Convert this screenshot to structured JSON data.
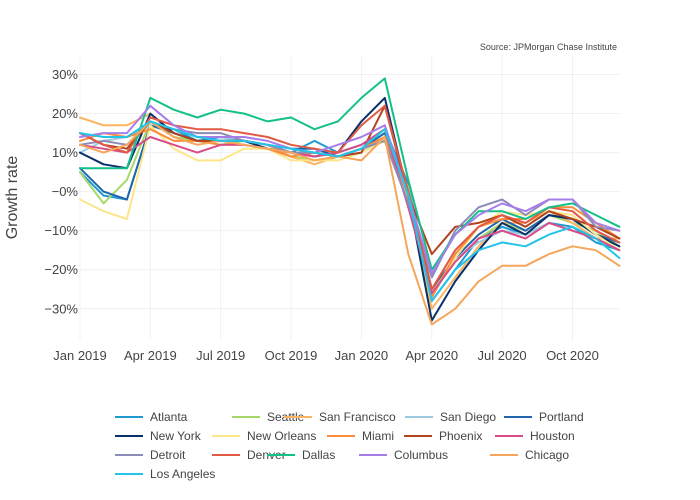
{
  "chart_data": {
    "type": "line",
    "title": "",
    "source": "Source: JPMorgan Chase Institute",
    "xlabel": "",
    "ylabel": "Growth rate",
    "x": [
      "2019-01",
      "2019-02",
      "2019-03",
      "2019-04",
      "2019-05",
      "2019-06",
      "2019-07",
      "2019-08",
      "2019-09",
      "2019-10",
      "2019-11",
      "2019-12",
      "2020-01",
      "2020-02",
      "2020-03",
      "2020-04",
      "2020-05",
      "2020-06",
      "2020-07",
      "2020-08",
      "2020-09",
      "2020-10",
      "2020-11",
      "2020-12"
    ],
    "x_ticks": [
      {
        "value": "2019-01",
        "label": "Jan 2019"
      },
      {
        "value": "2019-04",
        "label": "Apr 2019"
      },
      {
        "value": "2019-07",
        "label": "Jul 2019"
      },
      {
        "value": "2019-10",
        "label": "Oct 2019"
      },
      {
        "value": "2020-01",
        "label": "Jan 2020"
      },
      {
        "value": "2020-04",
        "label": "Apr 2020"
      },
      {
        "value": "2020-07",
        "label": "Jul 2020"
      },
      {
        "value": "2020-10",
        "label": "Oct 2020"
      }
    ],
    "y_ticks": [
      {
        "value": 30,
        "label": "30%"
      },
      {
        "value": 20,
        "label": "20%"
      },
      {
        "value": 10,
        "label": "10%"
      },
      {
        "value": 0,
        "label": "−0%"
      },
      {
        "value": -10,
        "label": "−10%"
      },
      {
        "value": -20,
        "label": "−20%"
      },
      {
        "value": -30,
        "label": "−30%"
      }
    ],
    "ylim": [
      -38,
      35
    ],
    "grid": true,
    "legend_position": "bottom",
    "series": [
      {
        "name": "Atlanta",
        "color": "#1f9bd1",
        "values": [
          5,
          -1,
          -2,
          17,
          16,
          13,
          14,
          13,
          12,
          10,
          13,
          10,
          12,
          16,
          2,
          -28,
          -20,
          -12,
          -9,
          -11,
          -8,
          -9,
          -13,
          -15
        ]
      },
      {
        "name": "Seattle",
        "color": "#a6d96a",
        "values": [
          5,
          -3,
          3,
          18,
          14,
          13,
          12,
          13,
          11,
          9,
          8,
          9,
          10,
          14,
          1,
          -26,
          -18,
          -12,
          -8,
          -10,
          -6,
          -8,
          -10,
          -14
        ]
      },
      {
        "name": "San Francisco",
        "color": "#fdb462",
        "values": [
          19,
          17,
          17,
          20,
          15,
          13,
          13,
          13,
          12,
          9,
          7,
          9,
          11,
          14,
          -2,
          -30,
          -22,
          -14,
          -8,
          -8,
          -5,
          -8,
          -12,
          -12
        ]
      },
      {
        "name": "San Diego",
        "color": "#9ecae1",
        "values": [
          10,
          13,
          14,
          17,
          16,
          14,
          14,
          13,
          12,
          10,
          10,
          9,
          10,
          14,
          0,
          -27,
          -17,
          -13,
          -10,
          -11,
          -8,
          -10,
          -12,
          -15
        ]
      },
      {
        "name": "Portland",
        "color": "#2166ac",
        "values": [
          6,
          0,
          -2,
          17,
          15,
          13,
          13,
          13,
          12,
          11,
          11,
          9,
          11,
          15,
          0,
          -25,
          -17,
          -11,
          -7,
          -10,
          -6,
          -7,
          -11,
          -13
        ]
      },
      {
        "name": "New York",
        "color": "#08306b",
        "values": [
          10,
          7,
          6,
          20,
          15,
          13,
          13,
          13,
          11,
          10,
          9,
          10,
          18,
          24,
          -1,
          -33,
          -23,
          -15,
          -8,
          -11,
          -6,
          -7,
          -11,
          -14
        ]
      },
      {
        "name": "New Orleans",
        "color": "#fde68a",
        "values": [
          -2,
          -5,
          -7,
          17,
          11,
          8,
          8,
          11,
          11,
          8,
          8,
          8,
          10,
          13,
          -3,
          -26,
          -17,
          -9,
          -5,
          -6,
          -5,
          -6,
          -11,
          -15
        ]
      },
      {
        "name": "Miami",
        "color": "#fb8c3c",
        "values": [
          13,
          15,
          14,
          16,
          13,
          13,
          12,
          12,
          11,
          9,
          10,
          9,
          11,
          14,
          -3,
          -27,
          -16,
          -9,
          -7,
          -7,
          -4,
          -4,
          -8,
          -12
        ]
      },
      {
        "name": "Phoenix",
        "color": "#b2431f",
        "values": [
          15,
          12,
          11,
          18,
          15,
          13,
          13,
          13,
          12,
          10,
          10,
          9,
          10,
          22,
          -1,
          -16,
          -9,
          -8,
          -6,
          -9,
          -5,
          -7,
          -9,
          -12
        ]
      },
      {
        "name": "Houston",
        "color": "#d94c8a",
        "values": [
          12,
          11,
          10,
          14,
          12,
          10,
          12,
          12,
          11,
          10,
          9,
          10,
          12,
          16,
          -4,
          -26,
          -18,
          -12,
          -10,
          -12,
          -8,
          -10,
          -12,
          -15
        ]
      },
      {
        "name": "Detroit",
        "color": "#8c8cb8",
        "values": [
          12,
          13,
          12,
          18,
          16,
          15,
          15,
          13,
          12,
          10,
          10,
          9,
          11,
          13,
          -3,
          -22,
          -10,
          -4,
          -2,
          -6,
          -2,
          -2,
          -9,
          -10
        ]
      },
      {
        "name": "Denver",
        "color": "#e05a44",
        "values": [
          15,
          12,
          10,
          19,
          17,
          16,
          16,
          15,
          14,
          12,
          11,
          10,
          17,
          22,
          0,
          -25,
          -15,
          -9,
          -6,
          -8,
          -4,
          -5,
          -10,
          -13
        ]
      },
      {
        "name": "Dallas",
        "color": "#14c08a",
        "values": [
          6,
          6,
          6,
          24,
          21,
          19,
          21,
          20,
          18,
          19,
          16,
          18,
          24,
          29,
          3,
          -20,
          -11,
          -5,
          -5,
          -7,
          -4,
          -3,
          -6,
          -9
        ]
      },
      {
        "name": "Columbus",
        "color": "#a77dea",
        "values": [
          14,
          15,
          15,
          22,
          17,
          14,
          14,
          14,
          13,
          11,
          10,
          12,
          14,
          17,
          -1,
          -21,
          -11,
          -6,
          -3,
          -5,
          -2,
          -2,
          -8,
          -10
        ]
      },
      {
        "name": "Chicago",
        "color": "#f6a65a",
        "values": [
          12,
          10,
          12,
          18,
          14,
          12,
          13,
          12,
          11,
          10,
          8,
          9,
          8,
          14,
          -16,
          -34,
          -30,
          -23,
          -19,
          -19,
          -16,
          -14,
          -15,
          -19
        ]
      },
      {
        "name": "Los Angeles",
        "color": "#22c4e8",
        "values": [
          15,
          14,
          14,
          18,
          16,
          14,
          13,
          13,
          12,
          11,
          10,
          9,
          11,
          16,
          -1,
          -28,
          -20,
          -15,
          -13,
          -14,
          -11,
          -9,
          -12,
          -17
        ]
      }
    ]
  }
}
